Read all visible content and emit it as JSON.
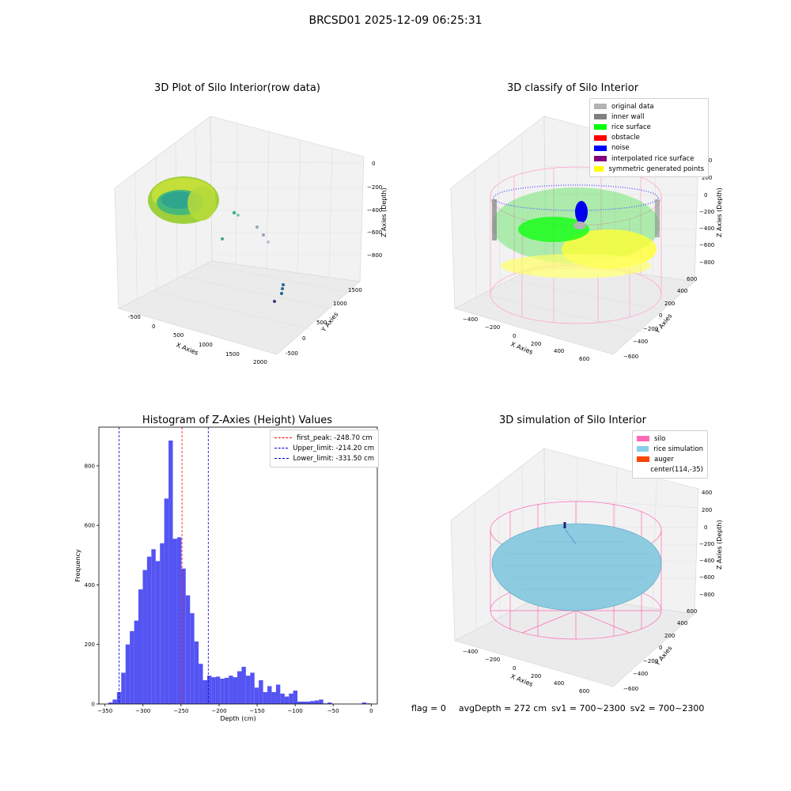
{
  "figure_title": "BRCSD01 2025-12-09 06:25:31",
  "panels": {
    "raw": {
      "title": "3D Plot of Silo Interior(row data)",
      "xlabel": "X Axies",
      "ylabel": "Y Axies",
      "zlabel": "Z Axies (Depth)",
      "xticks": [
        "-500",
        "0",
        "500",
        "1000",
        "1500",
        "2000"
      ],
      "yticks": [
        "-500",
        "0",
        "500",
        "1000",
        "1500"
      ],
      "zticks": [
        "0",
        "-200",
        "-400",
        "-600",
        "-800"
      ]
    },
    "classify": {
      "title": "3D classify of Silo Interior",
      "xlabel": "X Axies",
      "ylabel": "Y Axies",
      "zlabel": "Z Axies (Depth)",
      "xticks": [
        "-400",
        "-200",
        "0",
        "200",
        "400",
        "600"
      ],
      "yticks": [
        "-600",
        "-400",
        "-200",
        "0",
        "200",
        "400",
        "600"
      ],
      "zticks": [
        "400",
        "200",
        "0",
        "-200",
        "-400",
        "-600",
        "-800"
      ],
      "legend": [
        {
          "label": "original data",
          "color": "#b3b3b3"
        },
        {
          "label": "inner wall",
          "color": "#808080"
        },
        {
          "label": "rice surface",
          "color": "#00ff00"
        },
        {
          "label": "obstacle",
          "color": "#ff0000"
        },
        {
          "label": "noise",
          "color": "#0000ff"
        },
        {
          "label": "interpolated rice surface",
          "color": "#800080"
        },
        {
          "label": "symmetric generated points",
          "color": "#ffff00"
        }
      ]
    },
    "simulation": {
      "title": "3D simulation of Silo Interior",
      "xlabel": "X Axies",
      "ylabel": "Y Axies",
      "zlabel": "Z Axies (Depth)",
      "xticks": [
        "-400",
        "-200",
        "0",
        "200",
        "400",
        "600"
      ],
      "yticks": [
        "-600",
        "-400",
        "-200",
        "0",
        "200",
        "400",
        "600"
      ],
      "zticks": [
        "400",
        "200",
        "0",
        "-200",
        "-400",
        "-600",
        "-800"
      ],
      "legend": [
        {
          "label": "silo",
          "color": "#ff69b4"
        },
        {
          "label": "rice simulation",
          "color": "#87ceeb"
        },
        {
          "label": "auger",
          "color": "#ff4500"
        },
        {
          "label": "center(114,-35)",
          "color": ""
        }
      ]
    }
  },
  "chart_data": {
    "type": "bar",
    "title": "Histogram of Z-Axies (Height) Values",
    "xlabel": "Depth (cm)",
    "ylabel": "Frequency",
    "xlim": [
      -358,
      8
    ],
    "ylim": [
      0,
      930
    ],
    "xticks": [
      -350,
      -300,
      -250,
      -200,
      -150,
      -100,
      -50,
      0
    ],
    "yticks": [
      0,
      200,
      400,
      600,
      800
    ],
    "color": "#4b4bf2",
    "bin_width": 5.65,
    "bin_starts": [
      -345.5,
      -339.9,
      -334.2,
      -328.6,
      -322.9,
      -317.3,
      -311.6,
      -306.0,
      -300.3,
      -294.7,
      -289.0,
      -283.4,
      -277.7,
      -272.1,
      -266.4,
      -260.8,
      -255.1,
      -249.5,
      -243.8,
      -238.2,
      -232.5,
      -226.9,
      -221.2,
      -215.6,
      -209.9,
      -204.3,
      -198.6,
      -193.0,
      -187.3,
      -181.7,
      -176.0,
      -170.4,
      -164.7,
      -159.1,
      -153.4,
      -147.8,
      -142.1,
      -136.5,
      -130.8,
      -125.2,
      -119.5,
      -113.9,
      -108.2,
      -102.6,
      -96.9,
      -91.3,
      -85.6,
      -80.0,
      -74.3,
      -68.7,
      -63.0,
      -57.4,
      -51.7,
      -46.1,
      -40.4,
      -34.8,
      -29.1,
      -23.5,
      -17.8,
      -12.2,
      -6.5
    ],
    "values": [
      5,
      15,
      40,
      105,
      200,
      245,
      280,
      385,
      450,
      495,
      520,
      480,
      540,
      690,
      885,
      555,
      560,
      455,
      365,
      305,
      210,
      135,
      80,
      95,
      90,
      92,
      85,
      88,
      95,
      90,
      110,
      125,
      95,
      105,
      55,
      80,
      40,
      60,
      40,
      65,
      35,
      25,
      35,
      45,
      8,
      8,
      8,
      10,
      12,
      15,
      2,
      5,
      0,
      0,
      0,
      0,
      0,
      0,
      0,
      5,
      2
    ],
    "reference_lines": [
      {
        "label": "first_peak: -248.70 cm",
        "x": -248.7,
        "color": "#ff0000"
      },
      {
        "label": "Upper_limit: -214.20 cm",
        "x": -214.2,
        "color": "#0000cc"
      },
      {
        "label": "Lower_limit: -331.50 cm",
        "x": -331.5,
        "color": "#0000cc"
      }
    ]
  },
  "footer": {
    "flag": "flag = 0",
    "avg_depth": "avgDepth = 272 cm",
    "sv1": "sv1 = 700~2300",
    "sv2": "sv2 = 700~2300"
  }
}
